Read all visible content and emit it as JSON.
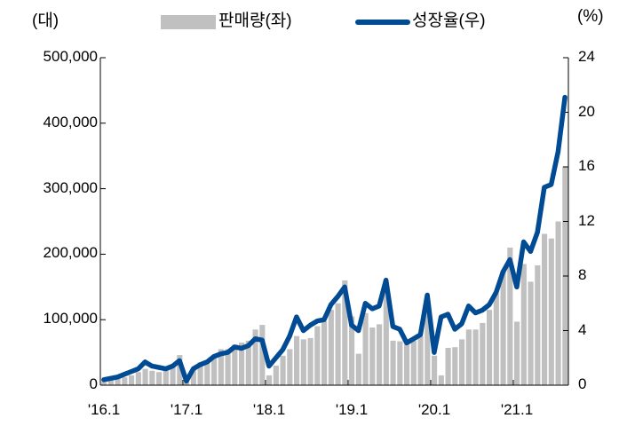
{
  "chart_data": {
    "type": "bar+line",
    "title": "",
    "units": {
      "left": "(대)",
      "right": "(%)"
    },
    "legend": [
      {
        "name": "판매량(좌)",
        "type": "bar",
        "color": "#c0c0c0",
        "axis": "left"
      },
      {
        "name": "성장율(우)",
        "type": "line",
        "color": "#004b93",
        "axis": "right"
      }
    ],
    "y_left": {
      "ylim": [
        0,
        500000
      ],
      "ticks": [
        "0",
        "100,000",
        "200,000",
        "300,000",
        "400,000",
        "500,000"
      ],
      "tick_values": [
        0,
        100000,
        200000,
        300000,
        400000,
        500000
      ]
    },
    "y_right": {
      "ylim": [
        0,
        24
      ],
      "ticks": [
        "0",
        "4",
        "8",
        "12",
        "16",
        "20",
        "24"
      ],
      "tick_values": [
        0,
        4,
        8,
        12,
        16,
        20,
        24
      ]
    },
    "x_tick_labels": [
      "'16.1",
      "'17.1",
      "'18.1",
      "'19.1",
      "'20.1",
      "'21.1"
    ],
    "x_tick_index": [
      0,
      12,
      24,
      36,
      48,
      60
    ],
    "x_start": "2016-01",
    "x_end": "2021-08",
    "series": [
      {
        "name": "판매량(좌)",
        "type": "bar",
        "values": [
          5000,
          8000,
          10000,
          12000,
          15000,
          20000,
          25000,
          22000,
          20000,
          25000,
          30000,
          46000,
          8000,
          25000,
          35000,
          35000,
          42000,
          55000,
          55000,
          62000,
          65000,
          68000,
          85000,
          92000,
          15000,
          30000,
          45000,
          55000,
          75000,
          70000,
          72000,
          90000,
          98000,
          115000,
          125000,
          160000,
          105000,
          48000,
          110000,
          88000,
          93000,
          145000,
          68000,
          67000,
          62000,
          68000,
          75000,
          130000,
          45000,
          15000,
          57000,
          58000,
          70000,
          85000,
          85000,
          95000,
          115000,
          140000,
          175000,
          210000,
          97000,
          185000,
          158000,
          183000,
          231000,
          224000,
          250000,
          334000
        ]
      },
      {
        "name": "성장율(우)",
        "type": "line",
        "values": [
          0.4,
          0.5,
          0.6,
          0.8,
          1.0,
          1.2,
          1.7,
          1.4,
          1.3,
          1.2,
          1.4,
          1.8,
          0.3,
          1.2,
          1.5,
          1.7,
          2.1,
          2.3,
          2.4,
          2.8,
          2.7,
          2.9,
          3.4,
          3.3,
          1.4,
          2.0,
          2.6,
          3.6,
          5.0,
          4.0,
          4.4,
          4.7,
          4.8,
          5.9,
          6.5,
          7.2,
          4.4,
          4.0,
          6.0,
          5.6,
          5.8,
          7.7,
          4.3,
          4.1,
          3.1,
          3.4,
          3.7,
          6.6,
          2.4,
          5.0,
          5.2,
          4.1,
          4.5,
          5.8,
          5.3,
          5.5,
          5.9,
          6.8,
          8.3,
          9.2,
          7.2,
          10.5,
          9.8,
          11.2,
          14.5,
          14.7,
          17.1,
          21.1
        ]
      }
    ],
    "grid": false,
    "legend_position": "top"
  }
}
